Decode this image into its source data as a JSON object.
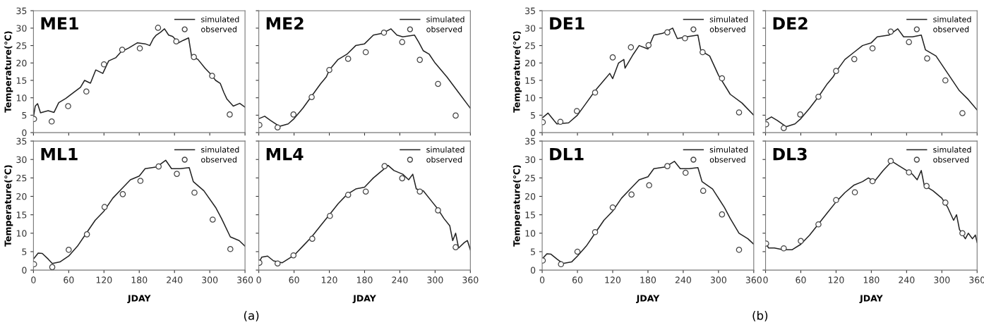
{
  "chart_data": [
    {
      "type": "line",
      "title": "ME1",
      "ylabel": "Temperature(℃)",
      "xlim": [
        0,
        360
      ],
      "ylim": [
        0,
        35
      ],
      "xticks": [
        0,
        60,
        120,
        180,
        240,
        300,
        360
      ],
      "yticks": [
        0,
        5,
        10,
        15,
        20,
        25,
        30,
        35
      ],
      "tick_labels": "y",
      "legend": "top right",
      "grid": false,
      "series": [
        {
          "name": "simulated",
          "color": "#222222",
          "x": [
            0,
            3,
            7,
            12,
            25,
            35,
            43,
            55,
            68,
            80,
            87,
            97,
            106,
            118,
            128,
            140,
            149,
            162,
            177,
            190,
            198,
            204,
            209,
            216,
            223,
            230,
            237,
            247,
            255,
            264,
            269,
            280,
            292,
            302,
            310,
            318,
            324,
            329,
            340,
            351,
            360
          ],
          "values": [
            4.5,
            7.6,
            8.3,
            5.7,
            6.3,
            5.8,
            8.6,
            9.8,
            11.5,
            13.0,
            15.0,
            14.2,
            18.0,
            17.0,
            20.6,
            21.5,
            23.2,
            24.3,
            25.8,
            25.5,
            25.0,
            27.0,
            28.0,
            28.8,
            29.8,
            28.0,
            27.6,
            25.8,
            26.5,
            27.2,
            22.0,
            21.0,
            18.5,
            16.7,
            15.0,
            14.1,
            11.5,
            9.7,
            7.6,
            8.4,
            7.3
          ]
        },
        {
          "name": "observed",
          "type": "scatter",
          "color": "#444444",
          "marker": "circle",
          "x": [
            1,
            31,
            59,
            90,
            120,
            151,
            181,
            212,
            243,
            273,
            304,
            334
          ],
          "values": [
            3.9,
            3.2,
            7.6,
            11.8,
            19.6,
            23.8,
            24.2,
            30.1,
            26.2,
            21.7,
            16.3,
            5.2
          ]
        }
      ]
    },
    {
      "type": "line",
      "title": "ME2",
      "xlim": [
        0,
        360
      ],
      "ylim": [
        0,
        35
      ],
      "xticks": [
        0,
        60,
        120,
        180,
        240,
        300,
        360
      ],
      "yticks": [
        0,
        5,
        10,
        15,
        20,
        25,
        30,
        35
      ],
      "tick_labels": false,
      "legend": "top right",
      "grid": false,
      "series": [
        {
          "name": "simulated",
          "color": "#222222",
          "x": [
            0,
            10,
            20,
            35,
            50,
            60,
            75,
            90,
            105,
            115,
            120,
            135,
            150,
            165,
            180,
            195,
            210,
            225,
            235,
            245,
            265,
            272,
            280,
            290,
            300,
            320,
            340,
            360
          ],
          "values": [
            4.0,
            4.7,
            3.5,
            1.8,
            2.5,
            4.0,
            7.0,
            10.5,
            14.0,
            16.0,
            18.0,
            21.0,
            22.5,
            25.0,
            25.5,
            28.0,
            28.5,
            29.8,
            28.0,
            27.5,
            28.0,
            26.0,
            23.5,
            22.5,
            20.0,
            16.0,
            11.5,
            7.0
          ]
        },
        {
          "name": "observed",
          "type": "scatter",
          "color": "#444444",
          "marker": "circle",
          "x": [
            1,
            32,
            59,
            90,
            120,
            152,
            182,
            213,
            244,
            274,
            305,
            335
          ],
          "values": [
            2.2,
            1.5,
            5.2,
            10.2,
            18.0,
            21.2,
            23.1,
            28.7,
            26.0,
            20.9,
            14.0,
            4.9
          ]
        }
      ]
    },
    {
      "type": "line",
      "title": "ML1",
      "xlabel": "JDAY",
      "ylabel": "Temperature(℃)",
      "xlim": [
        0,
        360
      ],
      "ylim": [
        0,
        35
      ],
      "xticks": [
        0,
        60,
        120,
        180,
        240,
        300,
        360
      ],
      "yticks": [
        0,
        5,
        10,
        15,
        20,
        25,
        30,
        35
      ],
      "legend": "top right",
      "grid": false,
      "annotations": [
        "(a)"
      ],
      "series": [
        {
          "name": "simulated",
          "color": "#222222",
          "x": [
            0,
            8,
            15,
            25,
            32,
            45,
            60,
            75,
            90,
            105,
            120,
            135,
            150,
            165,
            180,
            190,
            210,
            225,
            235,
            250,
            265,
            272,
            290,
            310,
            320,
            335,
            350,
            360
          ],
          "values": [
            3.0,
            4.6,
            4.5,
            3.0,
            1.8,
            2.2,
            3.8,
            6.5,
            10.0,
            13.5,
            16.0,
            19.5,
            22.0,
            24.5,
            25.5,
            27.5,
            28.0,
            29.8,
            27.5,
            27.5,
            27.8,
            24.0,
            21.5,
            17.0,
            14.0,
            9.0,
            8.0,
            6.5
          ]
        },
        {
          "name": "observed",
          "type": "scatter",
          "color": "#444444",
          "marker": "circle",
          "x": [
            1,
            32,
            60,
            91,
            121,
            152,
            182,
            213,
            244,
            274,
            305,
            335
          ],
          "values": [
            1.6,
            0.8,
            5.5,
            9.7,
            17.1,
            20.6,
            24.2,
            28.1,
            26.1,
            21.0,
            13.7,
            5.7
          ]
        }
      ]
    },
    {
      "type": "line",
      "title": "ML4",
      "xlabel": "JDAY",
      "xlim": [
        0,
        360
      ],
      "ylim": [
        0,
        35
      ],
      "xticks": [
        0,
        60,
        120,
        180,
        240,
        300,
        360
      ],
      "yticks": [
        0,
        5,
        10,
        15,
        20,
        25,
        30,
        35
      ],
      "tick_labels": "x",
      "legend": "top right",
      "grid": false,
      "series": [
        {
          "name": "simulated",
          "color": "#222222",
          "x": [
            0,
            5,
            15,
            25,
            40,
            60,
            75,
            90,
            105,
            120,
            135,
            150,
            165,
            180,
            195,
            210,
            220,
            230,
            245,
            255,
            262,
            268,
            280,
            295,
            305,
            315,
            325,
            330,
            335,
            340,
            350,
            355,
            360
          ],
          "values": [
            2.0,
            3.5,
            3.8,
            2.5,
            2.0,
            4.0,
            6.5,
            9.0,
            12.0,
            15.0,
            18.0,
            20.5,
            22.0,
            22.5,
            25.0,
            27.0,
            28.4,
            27.0,
            26.0,
            24.5,
            26.0,
            22.0,
            21.5,
            18.5,
            16.5,
            14.0,
            12.0,
            8.0,
            10.0,
            6.0,
            7.5,
            8.0,
            5.5
          ]
        },
        {
          "name": "observed",
          "type": "scatter",
          "color": "#444444",
          "marker": "circle",
          "x": [
            1,
            32,
            59,
            91,
            121,
            152,
            182,
            214,
            244,
            274,
            305,
            335
          ],
          "values": [
            2.0,
            1.8,
            4.0,
            8.5,
            14.7,
            20.4,
            21.3,
            28.2,
            24.9,
            21.3,
            16.2,
            6.2
          ]
        }
      ]
    },
    {
      "type": "line",
      "title": "DE1",
      "ylabel": "Temperature(℃)",
      "xlim": [
        0,
        360
      ],
      "ylim": [
        0,
        35
      ],
      "xticks": [
        0,
        60,
        120,
        180,
        240,
        300,
        360
      ],
      "yticks": [
        0,
        5,
        10,
        15,
        20,
        25,
        30,
        35
      ],
      "tick_labels": "y",
      "legend": "top right",
      "grid": false,
      "series": [
        {
          "name": "simulated",
          "color": "#222222",
          "x": [
            0,
            10,
            20,
            25,
            45,
            60,
            75,
            90,
            105,
            115,
            120,
            130,
            139,
            141,
            155,
            165,
            180,
            190,
            205,
            222,
            230,
            245,
            265,
            270,
            285,
            300,
            320,
            340,
            360
          ],
          "values": [
            4.2,
            5.6,
            3.5,
            2.5,
            2.8,
            5.0,
            8.5,
            12.0,
            15.0,
            17.0,
            15.5,
            20.0,
            21.0,
            18.5,
            22.5,
            25.0,
            24.0,
            28.0,
            28.5,
            30.0,
            27.0,
            27.5,
            28.0,
            23.5,
            22.0,
            16.5,
            11.0,
            8.5,
            5.0
          ]
        },
        {
          "name": "observed",
          "type": "scatter",
          "color": "#444444",
          "marker": "circle",
          "x": [
            1,
            31,
            59,
            90,
            120,
            151,
            181,
            213,
            243,
            273,
            306,
            335
          ],
          "values": [
            3.0,
            3.1,
            6.2,
            11.5,
            21.6,
            24.5,
            25.1,
            28.8,
            27.1,
            23.1,
            15.6,
            5.8
          ]
        }
      ]
    },
    {
      "type": "line",
      "title": "DE2",
      "xlim": [
        0,
        360
      ],
      "ylim": [
        0,
        35
      ],
      "xticks": [
        0,
        60,
        120,
        180,
        240,
        300,
        360
      ],
      "yticks": [
        0,
        5,
        10,
        15,
        20,
        25,
        30,
        35
      ],
      "tick_labels": false,
      "legend": "top right",
      "grid": false,
      "series": [
        {
          "name": "simulated",
          "color": "#222222",
          "x": [
            0,
            10,
            20,
            35,
            50,
            60,
            75,
            90,
            105,
            115,
            120,
            135,
            150,
            165,
            180,
            190,
            210,
            225,
            235,
            250,
            265,
            272,
            290,
            310,
            330,
            345,
            360
          ],
          "values": [
            3.5,
            4.5,
            3.5,
            1.7,
            2.5,
            4.0,
            7.0,
            10.3,
            14.0,
            16.0,
            17.5,
            21.0,
            23.0,
            25.0,
            25.8,
            27.5,
            28.0,
            29.8,
            27.5,
            27.5,
            28.0,
            23.8,
            22.0,
            17.0,
            12.0,
            9.5,
            6.5
          ]
        },
        {
          "name": "observed",
          "type": "scatter",
          "color": "#444444",
          "marker": "circle",
          "x": [
            1,
            31,
            59,
            90,
            120,
            151,
            182,
            213,
            244,
            275,
            306,
            335
          ],
          "values": [
            2.4,
            1.3,
            5.2,
            10.3,
            17.7,
            21.1,
            24.2,
            29.0,
            26.0,
            21.3,
            15.0,
            5.6
          ]
        }
      ]
    },
    {
      "type": "line",
      "title": "DL1",
      "xlabel": "JDAY",
      "ylabel": "Temperature(℃)",
      "xlim": [
        0,
        360
      ],
      "ylim": [
        0,
        35
      ],
      "xticks": [
        0,
        60,
        120,
        180,
        240,
        300,
        360
      ],
      "yticks": [
        0,
        5,
        10,
        15,
        20,
        25,
        30,
        35
      ],
      "legend": "top right",
      "grid": false,
      "annotations": [
        "(b)"
      ],
      "series": [
        {
          "name": "simulated",
          "color": "#222222",
          "x": [
            0,
            8,
            15,
            25,
            35,
            50,
            60,
            75,
            90,
            105,
            120,
            135,
            150,
            165,
            180,
            190,
            210,
            225,
            235,
            250,
            265,
            272,
            290,
            310,
            320,
            335,
            350,
            360
          ],
          "values": [
            3.0,
            4.4,
            4.3,
            3.0,
            1.8,
            2.2,
            3.8,
            6.5,
            10.0,
            13.5,
            16.0,
            19.5,
            22.0,
            24.5,
            25.3,
            27.5,
            28.0,
            29.5,
            27.5,
            27.5,
            27.8,
            24.0,
            22.0,
            17.0,
            14.0,
            10.0,
            8.5,
            7.0
          ]
        },
        {
          "name": "observed",
          "type": "scatter",
          "color": "#444444",
          "marker": "circle",
          "x": [
            1,
            32,
            60,
            90,
            120,
            152,
            182,
            213,
            244,
            274,
            306,
            335
          ],
          "values": [
            2.6,
            1.6,
            5.0,
            10.3,
            17.0,
            20.5,
            23.0,
            28.2,
            26.4,
            21.5,
            15.1,
            5.5
          ]
        }
      ]
    },
    {
      "type": "line",
      "title": "DL3",
      "xlabel": "JDAY",
      "xlim": [
        0,
        360
      ],
      "ylim": [
        0,
        35
      ],
      "xticks": [
        0,
        60,
        120,
        180,
        240,
        300,
        360
      ],
      "yticks": [
        0,
        5,
        10,
        15,
        20,
        25,
        30,
        35
      ],
      "tick_labels": "x",
      "legend": "top right",
      "grid": false,
      "series": [
        {
          "name": "simulated",
          "color": "#222222",
          "x": [
            0,
            5,
            15,
            30,
            45,
            60,
            75,
            90,
            105,
            120,
            135,
            150,
            165,
            175,
            185,
            200,
            215,
            225,
            240,
            250,
            258,
            265,
            270,
            285,
            300,
            310,
            320,
            325,
            330,
            340,
            345,
            352,
            357,
            360
          ],
          "values": [
            7.5,
            6.0,
            6.0,
            5.5,
            5.5,
            7.0,
            9.5,
            12.5,
            15.5,
            18.5,
            21.0,
            23.0,
            24.0,
            25.0,
            24.0,
            27.0,
            29.5,
            28.5,
            27.0,
            26.0,
            24.5,
            27.0,
            23.0,
            21.5,
            19.5,
            17.0,
            13.5,
            15.0,
            11.0,
            8.5,
            10.0,
            8.5,
            9.5,
            7.5
          ]
        },
        {
          "name": "observed",
          "type": "scatter",
          "color": "#444444",
          "marker": "circle",
          "x": [
            1,
            31,
            60,
            90,
            120,
            152,
            182,
            213,
            244,
            274,
            306,
            335
          ],
          "values": [
            7.2,
            5.9,
            7.9,
            12.4,
            19.0,
            21.1,
            24.1,
            29.6,
            26.5,
            22.8,
            18.3,
            10.0
          ]
        }
      ]
    }
  ]
}
